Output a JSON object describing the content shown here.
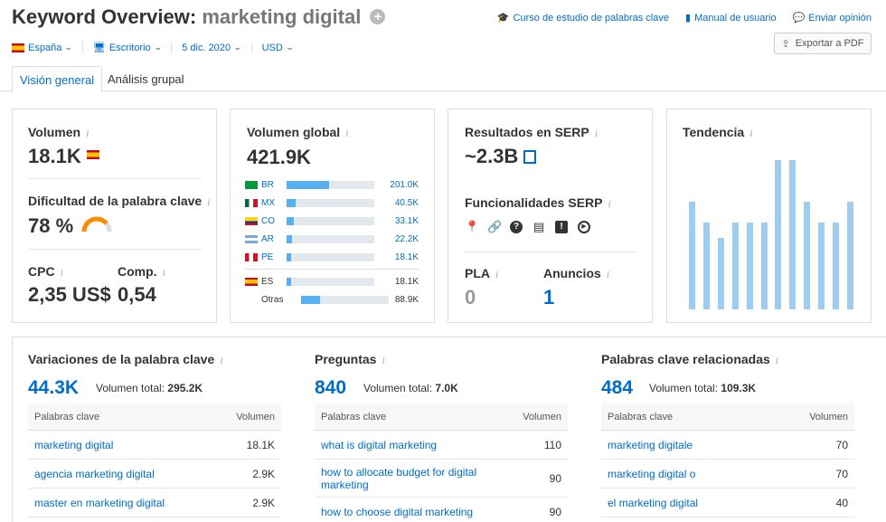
{
  "header": {
    "title_prefix": "Keyword Overview:",
    "keyword": "marketing digital",
    "links": [
      {
        "icon": "graduation-cap-icon",
        "glyph": "🎓",
        "label": "Curso de estudio de palabras clave"
      },
      {
        "icon": "book-icon",
        "glyph": "▮",
        "label": "Manual de usuario"
      },
      {
        "icon": "speech-bubble-icon",
        "glyph": "💬",
        "label": "Enviar opinión"
      }
    ],
    "export_label": "Exportar a PDF"
  },
  "filters": {
    "country": "España",
    "device": "Escritorio",
    "date": "5 dic. 2020",
    "currency": "USD"
  },
  "tabs": [
    "Visión general",
    "Análisis grupal"
  ],
  "volume": {
    "label": "Volumen",
    "value": "18.1K",
    "difficulty_label": "Dificultad de la palabra clave",
    "difficulty_value": "78 %",
    "difficulty": 0.78,
    "cpc_label": "CPC",
    "cpc_value": "2,35 US$",
    "comp_label": "Comp.",
    "comp_value": "0,54"
  },
  "global_volume": {
    "label": "Volumen global",
    "value": "421.9K",
    "countries": [
      {
        "code": "BR",
        "value": "201.0K",
        "share": 0.48,
        "flag": "br"
      },
      {
        "code": "MX",
        "value": "40.5K",
        "share": 0.1,
        "flag": "mx"
      },
      {
        "code": "CO",
        "value": "33.1K",
        "share": 0.08,
        "flag": "co"
      },
      {
        "code": "AR",
        "value": "22.2K",
        "share": 0.06,
        "flag": "ar"
      },
      {
        "code": "PE",
        "value": "18.1K",
        "share": 0.05,
        "flag": "pe"
      }
    ],
    "others": [
      {
        "code": "ES",
        "value": "18.1K",
        "share": 0.05,
        "flag": "es"
      },
      {
        "code": "Otras",
        "value": "88.9K",
        "share": 0.22,
        "flag": ""
      }
    ]
  },
  "serp": {
    "label": "Resultados en SERP",
    "value": "~2.3B",
    "features_label": "Funcionalidades SERP",
    "features": [
      {
        "icon": "location-pin-icon",
        "glyph": "⬤"
      },
      {
        "icon": "link-icon",
        "glyph": "🔗"
      },
      {
        "icon": "question-icon",
        "glyph": "?"
      },
      {
        "icon": "document-icon",
        "glyph": "▤"
      },
      {
        "icon": "faq-icon",
        "glyph": "!"
      },
      {
        "icon": "video-icon",
        "glyph": "▶"
      }
    ],
    "pla_label": "PLA",
    "pla_value": "0",
    "ads_label": "Anuncios",
    "ads_value": "1"
  },
  "trend": {
    "label": "Tendencia",
    "values": [
      0.72,
      0.58,
      0.48,
      0.58,
      0.58,
      0.58,
      1.0,
      1.0,
      0.72,
      0.58,
      0.58,
      0.72
    ]
  },
  "variations": {
    "label": "Variaciones de la palabra clave",
    "count": "44.3K",
    "total_label": "Volumen total:",
    "total_value": "295.2K",
    "col_keyword": "Palabras clave",
    "col_volume": "Volumen",
    "rows": [
      {
        "keyword": "marketing digital",
        "volume": "18.1K"
      },
      {
        "keyword": "agencia marketing digital",
        "volume": "2.9K"
      },
      {
        "keyword": "master en marketing digital",
        "volume": "2.9K"
      }
    ]
  },
  "questions": {
    "label": "Preguntas",
    "count": "840",
    "total_label": "Volumen total:",
    "total_value": "7.0K",
    "col_keyword": "Palabras clave",
    "col_volume": "Volumen",
    "rows": [
      {
        "keyword": "what is digital marketing",
        "volume": "110"
      },
      {
        "keyword": "how to allocate budget for digital marketing",
        "volume": "90"
      },
      {
        "keyword": "how to choose digital marketing",
        "volume": "90"
      }
    ]
  },
  "related": {
    "label": "Palabras clave relacionadas",
    "count": "484",
    "total_label": "Volumen total:",
    "total_value": "109.3K",
    "col_keyword": "Palabras clave",
    "col_volume": "Volumen",
    "rows": [
      {
        "keyword": "marketing digitale",
        "volume": "70"
      },
      {
        "keyword": "marketing digital o",
        "volume": "70"
      },
      {
        "keyword": "el marketing digital",
        "volume": "40"
      }
    ]
  },
  "colors": {
    "accent": "#006dca",
    "bar": "#56b0f1",
    "trend": "#9fcdf1",
    "gauge": "#ff8c00"
  }
}
